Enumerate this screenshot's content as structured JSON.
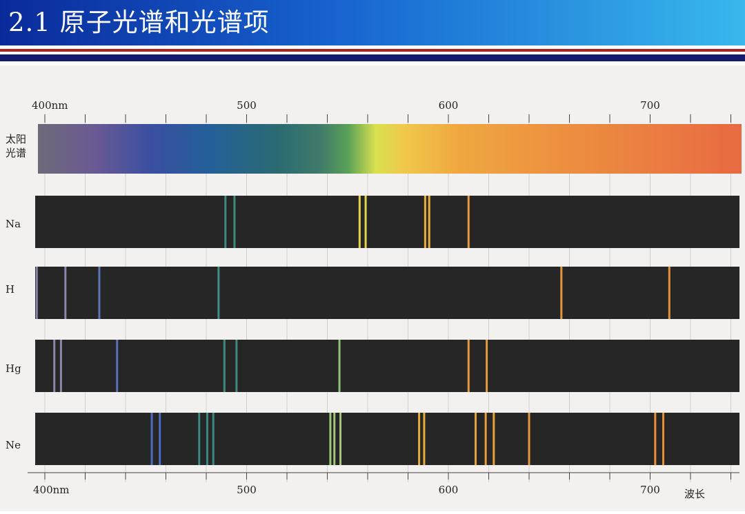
{
  "slide": {
    "title": "2.1 原子光谱和光谱项"
  },
  "figure": {
    "top_axis": {
      "ticks": [
        "400nm",
        "500",
        "600",
        "700"
      ]
    },
    "bottom_axis": {
      "ticks": [
        "400nm",
        "500",
        "600",
        "700"
      ],
      "unit_label": "波长"
    },
    "axis_range_nm": [
      400,
      740
    ],
    "spectra": [
      {
        "label": "太阳\n光谱",
        "type": "continuous"
      },
      {
        "label": "Na",
        "type": "lines",
        "lines": [
          {
            "nm": 489.5,
            "color": "#3f8a7f"
          },
          {
            "nm": 494,
            "color": "#3f8a7f"
          },
          {
            "nm": 556,
            "color": "#e4d24a"
          },
          {
            "nm": 559,
            "color": "#e4d24a"
          },
          {
            "nm": 588.5,
            "color": "#e8b040"
          },
          {
            "nm": 590.5,
            "color": "#e8b040"
          },
          {
            "nm": 610,
            "color": "#e59a3c"
          }
        ]
      },
      {
        "label": "H",
        "type": "lines",
        "lines": [
          {
            "nm": 396,
            "color": "#8a7fa6"
          },
          {
            "nm": 410.2,
            "color": "#8d83b0"
          },
          {
            "nm": 427,
            "color": "#5c74b8"
          },
          {
            "nm": 486.1,
            "color": "#3f8d86"
          },
          {
            "nm": 656,
            "color": "#e6963a"
          },
          {
            "nm": 709.5,
            "color": "#e3923a"
          }
        ]
      },
      {
        "label": "Hg",
        "type": "lines",
        "lines": [
          {
            "nm": 404.7,
            "color": "#8e86a8"
          },
          {
            "nm": 408,
            "color": "#8e86a8"
          },
          {
            "nm": 435.8,
            "color": "#5b6fb7"
          },
          {
            "nm": 489,
            "color": "#3f8a7f"
          },
          {
            "nm": 495,
            "color": "#3f8a7f"
          },
          {
            "nm": 546,
            "color": "#8ec47a"
          },
          {
            "nm": 610,
            "color": "#e49a3a"
          },
          {
            "nm": 619,
            "color": "#e49a3a"
          }
        ]
      },
      {
        "label": "Ne",
        "type": "lines",
        "lines": [
          {
            "nm": 453,
            "color": "#4e6cc2"
          },
          {
            "nm": 457,
            "color": "#4e6cc2"
          },
          {
            "nm": 476.5,
            "color": "#3d8783"
          },
          {
            "nm": 480.5,
            "color": "#3d8783"
          },
          {
            "nm": 483.5,
            "color": "#3d8783"
          },
          {
            "nm": 541.5,
            "color": "#9fc47a"
          },
          {
            "nm": 543.5,
            "color": "#9fc47a"
          },
          {
            "nm": 546.5,
            "color": "#9fc47a"
          },
          {
            "nm": 585.5,
            "color": "#e6aa3e"
          },
          {
            "nm": 588,
            "color": "#e6aa3e"
          },
          {
            "nm": 613.5,
            "color": "#e6a03c"
          },
          {
            "nm": 618.5,
            "color": "#e6a03c"
          },
          {
            "nm": 622.5,
            "color": "#e6a03c"
          },
          {
            "nm": 640,
            "color": "#e6963a"
          },
          {
            "nm": 702.5,
            "color": "#e6903a"
          },
          {
            "nm": 706.5,
            "color": "#e6903a"
          }
        ]
      }
    ]
  },
  "colors": {
    "header_start": "#0a2a9a",
    "header_end": "#38b8ec",
    "stripe_red": "#b02020",
    "stripe_navy": "#141a6e",
    "spectrum_background": "#262626"
  }
}
